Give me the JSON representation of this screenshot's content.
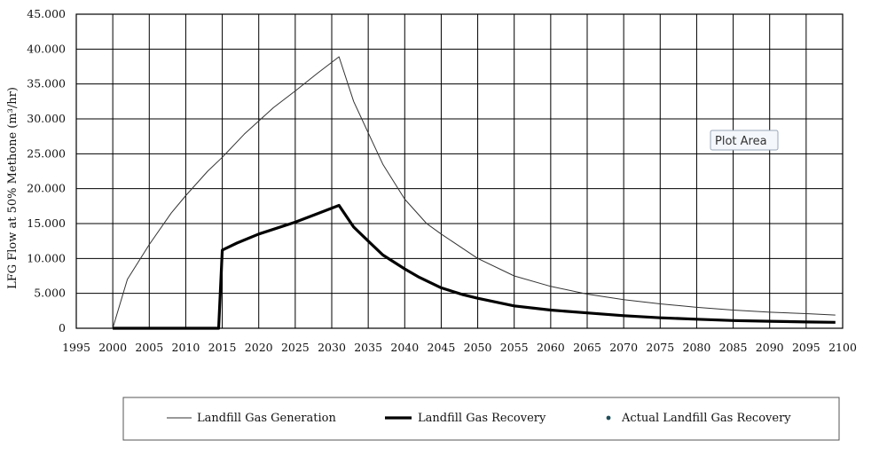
{
  "chart_data": {
    "type": "line",
    "ylabel": "LFG Flow at 50% Methone (m³/hr)",
    "xlim": [
      1995,
      2100
    ],
    "ylim": [
      0,
      45000
    ],
    "x_ticks": [
      1995,
      2000,
      2005,
      2010,
      2015,
      2020,
      2025,
      2030,
      2035,
      2040,
      2045,
      2050,
      2055,
      2060,
      2065,
      2070,
      2075,
      2080,
      2085,
      2090,
      2095,
      2100
    ],
    "y_ticks": [
      0,
      5000,
      10000,
      15000,
      20000,
      25000,
      30000,
      35000,
      40000,
      45000
    ],
    "y_tick_labels": [
      "0",
      "5.000",
      "10.000",
      "15.000",
      "20.000",
      "25.000",
      "30.000",
      "35.000",
      "40.000",
      "45.000"
    ],
    "grid": true,
    "legend_position": "bottom",
    "series": [
      {
        "name": "Landfill Gas Generation",
        "style": "thin",
        "color": "#333333",
        "x": [
          2000,
          2002,
          2005,
          2008,
          2010,
          2013,
          2015,
          2018,
          2020,
          2022,
          2025,
          2028,
          2031,
          2033,
          2035,
          2037,
          2040,
          2043,
          2045,
          2050,
          2055,
          2060,
          2065,
          2070,
          2075,
          2080,
          2085,
          2090,
          2095,
          2099
        ],
        "values": [
          0,
          7000,
          12000,
          16500,
          19000,
          22500,
          24500,
          27800,
          29700,
          31600,
          34000,
          36500,
          38900,
          32500,
          28000,
          23500,
          18500,
          15000,
          13500,
          10000,
          7500,
          6000,
          4900,
          4100,
          3500,
          3000,
          2600,
          2300,
          2100,
          1900
        ]
      },
      {
        "name": "Landfill Gas Recovery",
        "style": "thick",
        "color": "#000000",
        "x": [
          2000,
          2005,
          2010,
          2014.5,
          2015,
          2017,
          2020,
          2025,
          2028,
          2031,
          2033,
          2035,
          2037,
          2040,
          2042,
          2045,
          2048,
          2050,
          2055,
          2060,
          2065,
          2070,
          2075,
          2080,
          2085,
          2090,
          2095,
          2099
        ],
        "values": [
          0,
          0,
          0,
          0,
          11200,
          12200,
          13500,
          15200,
          16400,
          17600,
          14500,
          12500,
          10500,
          8500,
          7300,
          5800,
          4800,
          4300,
          3200,
          2600,
          2200,
          1800,
          1500,
          1300,
          1100,
          1000,
          900,
          850
        ]
      },
      {
        "name": "Actual Landfill Gas Recovery",
        "style": "marker",
        "color": "#1f4e5a",
        "x": [],
        "values": []
      }
    ],
    "annotations": [
      "Plot Area"
    ]
  }
}
